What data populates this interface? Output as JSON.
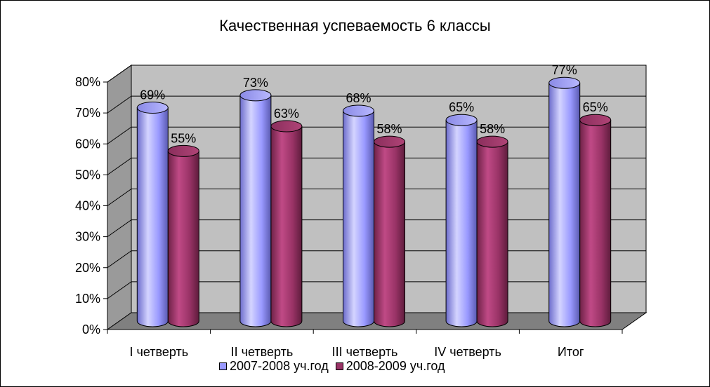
{
  "chart_data": {
    "type": "bar",
    "title": "Качественная успеваемость 6 классы",
    "categories": [
      "I четверть",
      "II четверть",
      "III четверть",
      "IV четверть",
      "Итог"
    ],
    "series": [
      {
        "name": "2007-2008 уч.год",
        "values": [
          69,
          73,
          68,
          65,
          77
        ],
        "labels": [
          "69%",
          "73%",
          "68%",
          "65%",
          "77%"
        ],
        "color": "#9999ff"
      },
      {
        "name": "2008-2009 уч.год",
        "values": [
          55,
          63,
          58,
          58,
          65
        ],
        "labels": [
          "55%",
          "63%",
          "58%",
          "58%",
          "65%"
        ],
        "color": "#993366"
      }
    ],
    "y_ticks": [
      "0%",
      "10%",
      "20%",
      "30%",
      "40%",
      "50%",
      "60%",
      "70%",
      "80%"
    ],
    "ylim": [
      0,
      80
    ],
    "grid": true,
    "legend_position": "bottom",
    "style": "3d-cylinder",
    "wall_color": "#c0c0c0",
    "floor_color": "#808080"
  }
}
